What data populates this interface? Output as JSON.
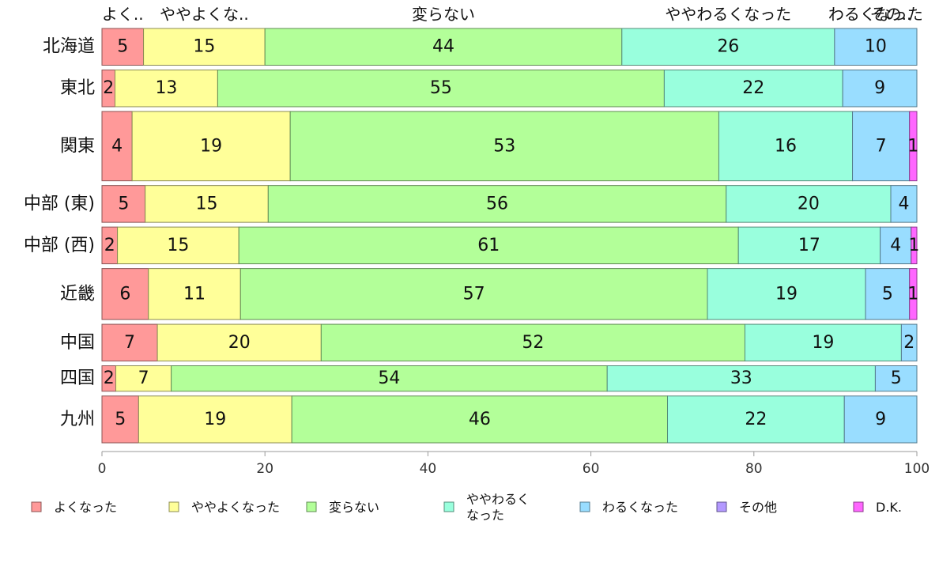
{
  "chart_data": {
    "type": "bar",
    "orientation": "horizontal",
    "stacked": true,
    "categories": [
      "北海道",
      "東北",
      "関東",
      "中部 (東)",
      "中部 (西)",
      "近畿",
      "中国",
      "四国",
      "九州"
    ],
    "series": [
      {
        "name": "よくなった",
        "color": "#ff9999",
        "values": [
          5.1,
          1.6,
          3.7,
          5.3,
          1.9,
          5.7,
          6.8,
          1.7,
          4.5
        ]
      },
      {
        "name": "ややよくなった",
        "color": "#ffff99",
        "values": [
          14.9,
          12.6,
          19.4,
          15.1,
          14.9,
          11.3,
          20.1,
          6.8,
          18.8
        ]
      },
      {
        "name": "変らない",
        "color": "#b3ff99",
        "values": [
          43.8,
          54.8,
          52.6,
          56.2,
          61.3,
          57.3,
          52.0,
          53.5,
          46.1
        ]
      },
      {
        "name": "ややわるくなった",
        "color": "#99ffdd",
        "values": [
          26.1,
          21.9,
          16.4,
          20.2,
          17.4,
          19.4,
          19.2,
          32.9,
          21.7
        ]
      },
      {
        "name": "わるくなった",
        "color": "#99ddff",
        "values": [
          10.1,
          9.1,
          7.0,
          3.8,
          3.8,
          5.4,
          1.9,
          5.1,
          8.9
        ]
      },
      {
        "name": "その他",
        "color": "#b399ff",
        "values": [
          0,
          0,
          0,
          0,
          0,
          0,
          0,
          0,
          0
        ]
      },
      {
        "name": "D.K.",
        "color": "#ff66ff",
        "values": [
          0,
          0,
          0.9,
          0,
          0.8,
          1.1,
          0,
          0,
          0
        ]
      }
    ],
    "row_weights": [
      6.2,
      6.2,
      11.7,
      6.2,
      6.2,
      8.6,
      6.2,
      4.3,
      7.9
    ],
    "top_labels": [
      "よく..",
      "ややよくな..",
      "変らない",
      "ややわるくなった",
      "わるくなった",
      "その.."
    ],
    "legend_labels": [
      "よくなった",
      "ややよくなった",
      "変らない",
      "ややわるく\nなった",
      "わるくなった",
      "その他",
      "D.K."
    ],
    "xlim": [
      0,
      100
    ],
    "xticks": [
      0,
      20,
      40,
      60,
      80,
      100
    ],
    "xlabel": "",
    "ylabel": "",
    "legend_position": "bottom",
    "grid": false
  }
}
